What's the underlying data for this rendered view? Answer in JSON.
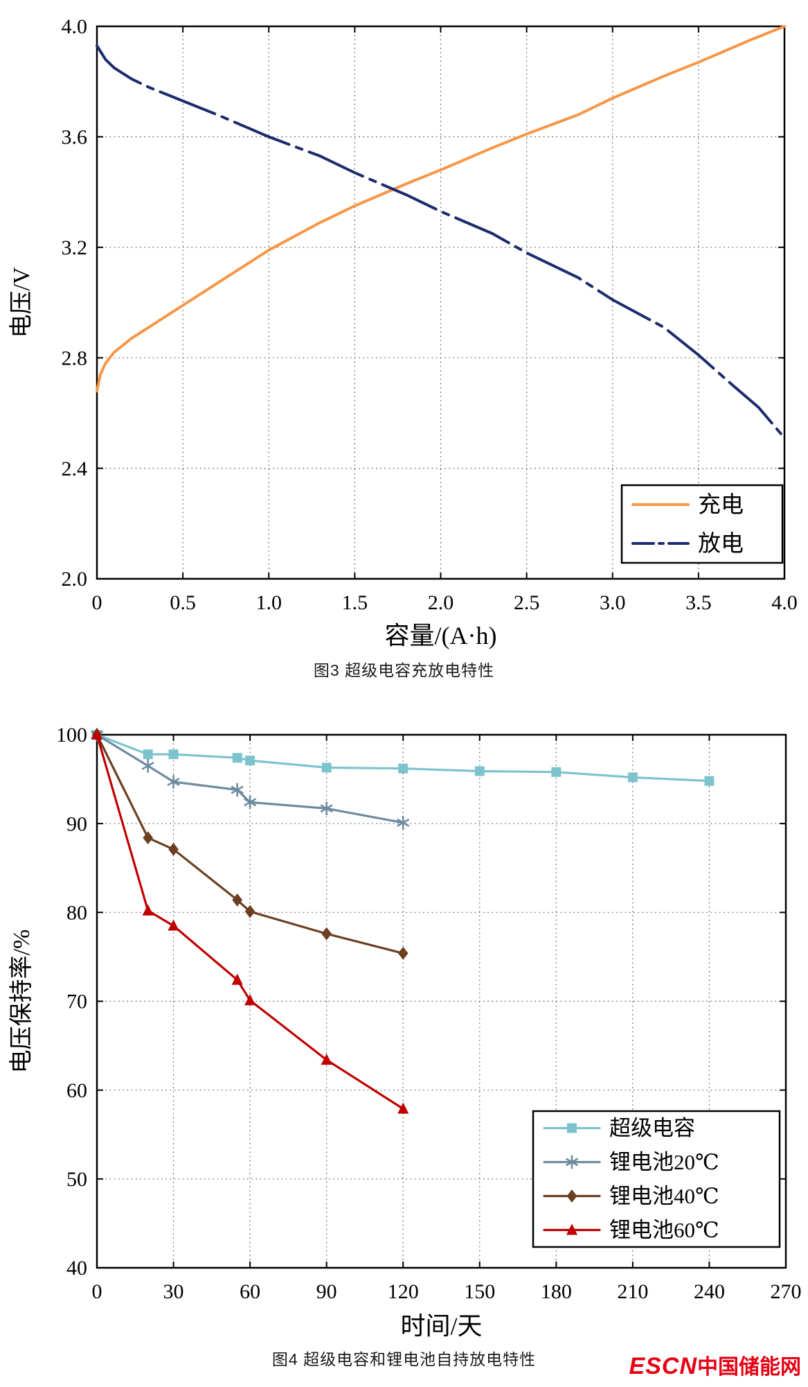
{
  "chart_data": [
    {
      "type": "line",
      "caption": "图3  超级电容充放电特性",
      "xlabel": "容量/(A·h)",
      "ylabel": "电压/V",
      "xlim": [
        0,
        4.0
      ],
      "ylim": [
        2.0,
        4.0
      ],
      "xtick_labels": [
        "0",
        "0.5",
        "1.0",
        "1.5",
        "2.0",
        "2.5",
        "3.0",
        "3.5",
        "4.0"
      ],
      "ytick_labels": [
        "2.0",
        "2.4",
        "2.8",
        "3.2",
        "3.6",
        "4.0"
      ],
      "grid": "dotted",
      "legend_position": "lower right",
      "series": [
        {
          "name": "充电",
          "color": "#F79646",
          "style": "solid",
          "marker": "none",
          "x": [
            0,
            0.02,
            0.05,
            0.1,
            0.2,
            0.3,
            0.5,
            0.7,
            1.0,
            1.3,
            1.5,
            1.8,
            2.0,
            2.3,
            2.5,
            2.8,
            3.0,
            3.3,
            3.5,
            3.8,
            4.0
          ],
          "y": [
            2.68,
            2.74,
            2.78,
            2.82,
            2.87,
            2.91,
            2.99,
            3.07,
            3.19,
            3.29,
            3.35,
            3.43,
            3.48,
            3.56,
            3.61,
            3.68,
            3.74,
            3.82,
            3.87,
            3.95,
            4.0
          ]
        },
        {
          "name": "放电",
          "color": "#1C2B6E",
          "style": "dashdot",
          "marker": "none",
          "x": [
            0,
            0.05,
            0.1,
            0.2,
            0.3,
            0.5,
            0.7,
            1.0,
            1.3,
            1.5,
            1.8,
            2.0,
            2.3,
            2.5,
            2.8,
            3.0,
            3.3,
            3.5,
            3.7,
            3.85,
            4.0
          ],
          "y": [
            3.93,
            3.88,
            3.85,
            3.81,
            3.78,
            3.73,
            3.68,
            3.6,
            3.53,
            3.47,
            3.39,
            3.33,
            3.25,
            3.18,
            3.09,
            3.01,
            2.91,
            2.81,
            2.7,
            2.62,
            2.51
          ]
        }
      ]
    },
    {
      "type": "line",
      "caption": "图4  超级电容和锂电池自持放电特性",
      "xlabel": "时间/天",
      "ylabel": "电压保持率/%",
      "xlim": [
        0,
        270
      ],
      "ylim": [
        40,
        100
      ],
      "xtick_labels": [
        "0",
        "30",
        "60",
        "90",
        "120",
        "150",
        "180",
        "210",
        "240",
        "270"
      ],
      "ytick_labels": [
        "40",
        "50",
        "60",
        "70",
        "80",
        "90",
        "100"
      ],
      "grid": "dotted",
      "legend_position": "lower right",
      "series": [
        {
          "name": "超级电容",
          "color": "#7DC3CD",
          "style": "solid",
          "marker": "square",
          "x": [
            0,
            20,
            30,
            55,
            60,
            90,
            120,
            150,
            180,
            210,
            240
          ],
          "y": [
            100,
            97.8,
            97.8,
            97.4,
            97.1,
            96.3,
            96.2,
            95.9,
            95.8,
            95.2,
            94.8
          ]
        },
        {
          "name": "锂电池20℃",
          "color": "#6E8CA0",
          "style": "solid",
          "marker": "asterisk",
          "x": [
            0,
            20,
            30,
            55,
            60,
            90,
            120
          ],
          "y": [
            100,
            96.5,
            94.7,
            93.8,
            92.4,
            91.7,
            90.1
          ]
        },
        {
          "name": "锂电池40℃",
          "color": "#6B3F20",
          "style": "solid",
          "marker": "diamond",
          "x": [
            0,
            20,
            30,
            55,
            60,
            90,
            120
          ],
          "y": [
            100,
            88.4,
            87.1,
            81.4,
            80.1,
            77.6,
            75.4
          ]
        },
        {
          "name": "锂电池60℃",
          "color": "#C00000",
          "style": "solid",
          "marker": "triangle",
          "x": [
            0,
            20,
            30,
            55,
            60,
            90,
            120
          ],
          "y": [
            100,
            80.2,
            78.5,
            72.4,
            70.1,
            63.4,
            57.9
          ]
        }
      ]
    }
  ],
  "logo": {
    "escn": "ESCN",
    "cn": "中国储能网",
    "color": "#E60012"
  }
}
